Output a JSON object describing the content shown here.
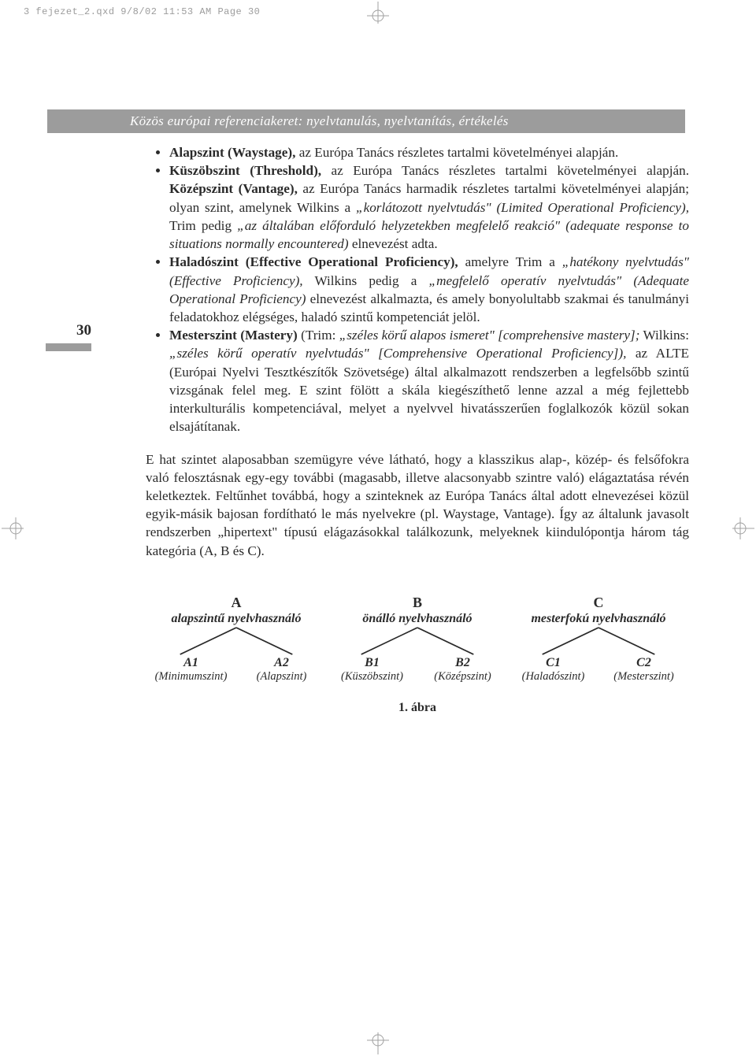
{
  "print_header": "3 fejezet_2.qxd  9/8/02  11:53 AM  Page 30",
  "title_bar": "Közös európai referenciakeret: nyelvtanulás, nyelvtanítás, értékelés",
  "page_number": "30",
  "bullets": [
    {
      "segments": [
        {
          "t": "Alapszint (Waystage),",
          "cls": "b"
        },
        {
          "t": " az Európa Tanács részletes tartalmi követelményei alapján.",
          "cls": ""
        }
      ]
    },
    {
      "segments": [
        {
          "t": "Küszöbszint (Threshold),",
          "cls": "b"
        },
        {
          "t": " az Európa Tanács részletes tartalmi követelményei alapján. ",
          "cls": ""
        },
        {
          "t": "Középszint (Vantage),",
          "cls": "b"
        },
        {
          "t": " az Európa Tanács harmadik részletes tartalmi követelményei alapján; olyan szint, amelynek Wilkins a ",
          "cls": ""
        },
        {
          "t": "„korlátozott nyelvtudás\" (Limited Operational Proficiency),",
          "cls": "i"
        },
        {
          "t": " Trim pedig ",
          "cls": ""
        },
        {
          "t": "„az általában előforduló helyzetekben megfelelő reakció\" (adequate response to situations normally encountered)",
          "cls": "i"
        },
        {
          "t": " elnevezést adta.",
          "cls": ""
        }
      ]
    },
    {
      "segments": [
        {
          "t": "Haladószint (Effective Operational Proficiency),",
          "cls": "b"
        },
        {
          "t": " amelyre Trim a ",
          "cls": ""
        },
        {
          "t": "„hatékony nyelvtudás\" (Effective Proficiency),",
          "cls": "i"
        },
        {
          "t": " Wilkins pedig a ",
          "cls": ""
        },
        {
          "t": "„megfelelő operatív nyelvtudás\" (Adequate Operational Proficiency)",
          "cls": "i"
        },
        {
          "t": " elnevezést alkalmazta, és amely bonyolultabb szakmai és tanulmányi feladatokhoz elégséges, haladó szintű kompetenciát jelöl.",
          "cls": ""
        }
      ]
    },
    {
      "segments": [
        {
          "t": "Mesterszint (Mastery)",
          "cls": "b"
        },
        {
          "t": " (Trim: ",
          "cls": ""
        },
        {
          "t": "„széles körű alapos ismeret\" [comprehensive mastery];",
          "cls": "i"
        },
        {
          "t": " Wilkins: ",
          "cls": ""
        },
        {
          "t": "„széles körű operatív nyelvtudás\" [Comprehensive Operational Proficiency]),",
          "cls": "i"
        },
        {
          "t": " az ALTE (Európai Nyelvi Tesztkészítők Szövetsége) által alkalmazott rendszerben a legfelsőbb szintű vizsgának felel meg. E szint fölött a skála kiegészíthető lenne azzal a még fejlettebb interkulturális kompetenciával, melyet a nyelvvel hivatásszerűen foglalkozók közül sokan elsajátítanak.",
          "cls": ""
        }
      ]
    }
  ],
  "paragraph": "E hat szintet alaposabban szemügyre véve látható, hogy a klasszikus alap-, közép- és felsőfokra való felosztásnak egy-egy további (magasabb, illetve alacsonyabb szintre való) elágaztatása révén keletkeztek. Feltűnhet továbbá, hogy a szinteknek az Európa Tanács által adott elnevezései közül egyik-másik bajosan fordítható le más nyelvekre (pl. Waystage, Vantage). Így az általunk javasolt rendszerben „hipertext\" típusú elágazásokkal találkozunk, melyeknek kiindulópontja három tág kategória (A, B és C).",
  "tree": {
    "top": [
      {
        "code": "A",
        "label": "alapszintű nyelvhasználó"
      },
      {
        "code": "B",
        "label": "önálló nyelvhasználó"
      },
      {
        "code": "C",
        "label": "mesterfokú nyelvhasználó"
      }
    ],
    "leaves": [
      {
        "code": "A1",
        "label": "(Minimumszint)"
      },
      {
        "code": "A2",
        "label": "(Alapszint)"
      },
      {
        "code": "B1",
        "label": "(Küszöbszint)"
      },
      {
        "code": "B2",
        "label": "(Középszint)"
      },
      {
        "code": "C1",
        "label": "(Haladószint)"
      },
      {
        "code": "C2",
        "label": "(Mesterszint)"
      }
    ]
  },
  "figure_caption": "1. ábra",
  "colors": {
    "bar_bg": "#9c9c9c",
    "bar_text": "#ffffff",
    "body_text": "#2a2a2a",
    "crop_mark": "#a0a0a0"
  }
}
